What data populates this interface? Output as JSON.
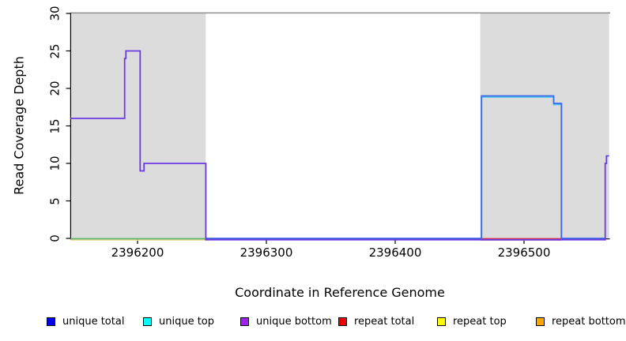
{
  "figure": {
    "y_axis": {
      "label": "Read Coverage Depth",
      "ticks": [
        0,
        5,
        10,
        15,
        20,
        25,
        30
      ]
    },
    "x_axis": {
      "label": "Coordinate in Reference Genome",
      "ticks": [
        2396200,
        2396300,
        2396400,
        2396500
      ]
    },
    "legend": [
      {
        "label": "unique total",
        "color": "#0000EE"
      },
      {
        "label": "unique top",
        "color": "#00FFFF"
      },
      {
        "label": "unique bottom",
        "color": "#A020F0"
      },
      {
        "label": "repeat total",
        "color": "#EE0000"
      },
      {
        "label": "repeat top",
        "color": "#FFFF00"
      },
      {
        "label": "repeat bottom",
        "color": "#FFA500"
      }
    ],
    "colors": {
      "shaded_region": "#DCDCDC",
      "plot_top_line": "#8C8C8C",
      "axis": "#000000"
    }
  },
  "chart_data": {
    "type": "line",
    "title": "",
    "xlabel": "Coordinate in Reference Genome",
    "ylabel": "Read Coverage Depth",
    "xlim": [
      2396148,
      2396566
    ],
    "ylim": [
      0,
      30
    ],
    "grid": false,
    "legend_position": "bottom",
    "shaded_regions": [
      {
        "x0": 2396148,
        "x1": 2396253
      },
      {
        "x0": 2396466,
        "x1": 2396566
      }
    ],
    "series": [
      {
        "name": "unique total",
        "color": "#3D6BE8",
        "points": [
          [
            2396253,
            0
          ],
          [
            2396467,
            0
          ],
          [
            2396467,
            19
          ],
          [
            2396523,
            19
          ],
          [
            2396523,
            18
          ],
          [
            2396529,
            18
          ],
          [
            2396529,
            0
          ],
          [
            2396563,
            0
          ]
        ]
      },
      {
        "name": "unique top",
        "color": "#45C6F0",
        "points": [
          [
            2396467,
            0
          ],
          [
            2396467,
            19
          ],
          [
            2396523,
            19
          ],
          [
            2396523,
            18
          ],
          [
            2396529,
            18
          ],
          [
            2396529,
            0
          ]
        ]
      },
      {
        "name": "unique bottom",
        "color": "#6A3AE2",
        "points": [
          [
            2396148,
            16
          ],
          [
            2396190,
            16
          ],
          [
            2396190,
            24
          ],
          [
            2396191,
            24
          ],
          [
            2396191,
            25
          ],
          [
            2396202,
            25
          ],
          [
            2396202,
            9
          ],
          [
            2396205,
            9
          ],
          [
            2396205,
            10
          ],
          [
            2396253,
            10
          ],
          [
            2396253,
            0
          ],
          [
            2396563,
            0
          ],
          [
            2396563,
            10
          ],
          [
            2396564,
            10
          ],
          [
            2396564,
            11
          ],
          [
            2396566,
            11
          ]
        ]
      },
      {
        "name": "repeat total",
        "color": "#E02840",
        "points": [
          [
            2396466,
            0
          ],
          [
            2396529,
            0
          ]
        ]
      },
      {
        "name": "repeat top",
        "color": "#EFE6A8",
        "points": [
          [
            2396148,
            0
          ],
          [
            2396253,
            0
          ]
        ]
      },
      {
        "name": "repeat bottom",
        "color": "#FFA500",
        "points": []
      }
    ],
    "extra_lines": [
      {
        "name": "left baseline (green)",
        "color": "#5CB85C",
        "points": [
          [
            2396148,
            0
          ],
          [
            2396253,
            0
          ]
        ]
      },
      {
        "name": "right baseline (pink)",
        "color": "#F5A8B8",
        "points": [
          [
            2396466,
            0
          ],
          [
            2396529,
            0
          ]
        ]
      }
    ]
  }
}
